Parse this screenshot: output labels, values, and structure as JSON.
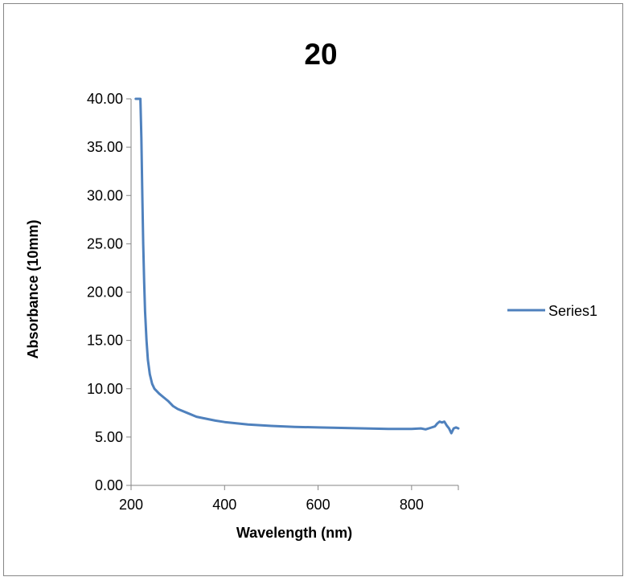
{
  "chart_data": {
    "type": "line",
    "title": "20",
    "xlabel": "Wavelength (nm)",
    "ylabel": "Absorbance (10mm)",
    "xlim": [
      200,
      900
    ],
    "ylim": [
      0,
      40
    ],
    "x_ticks": [
      "200",
      "400",
      "600",
      "800"
    ],
    "y_ticks": [
      "0.00",
      "5.00",
      "10.00",
      "15.00",
      "20.00",
      "25.00",
      "30.00",
      "35.00",
      "40.00"
    ],
    "grid": false,
    "legend_position": "right",
    "series": [
      {
        "name": "Series1",
        "color": "#4F81BD",
        "x": [
          210,
          220,
          222,
          224,
          226,
          228,
          230,
          233,
          236,
          240,
          245,
          250,
          260,
          270,
          280,
          290,
          300,
          320,
          340,
          360,
          380,
          400,
          450,
          500,
          550,
          600,
          650,
          700,
          750,
          780,
          800,
          820,
          830,
          840,
          850,
          855,
          860,
          865,
          870,
          875,
          880,
          885,
          890,
          895,
          900
        ],
        "y": [
          40,
          40,
          36,
          30,
          25,
          21,
          18,
          15,
          13,
          11.5,
          10.5,
          10,
          9.5,
          9.1,
          8.7,
          8.2,
          7.9,
          7.5,
          7.1,
          6.9,
          6.7,
          6.55,
          6.3,
          6.15,
          6.05,
          6.0,
          5.95,
          5.9,
          5.85,
          5.85,
          5.85,
          5.9,
          5.8,
          5.95,
          6.1,
          6.4,
          6.6,
          6.5,
          6.6,
          6.2,
          5.9,
          5.4,
          5.9,
          6.0,
          5.9
        ]
      }
    ]
  }
}
